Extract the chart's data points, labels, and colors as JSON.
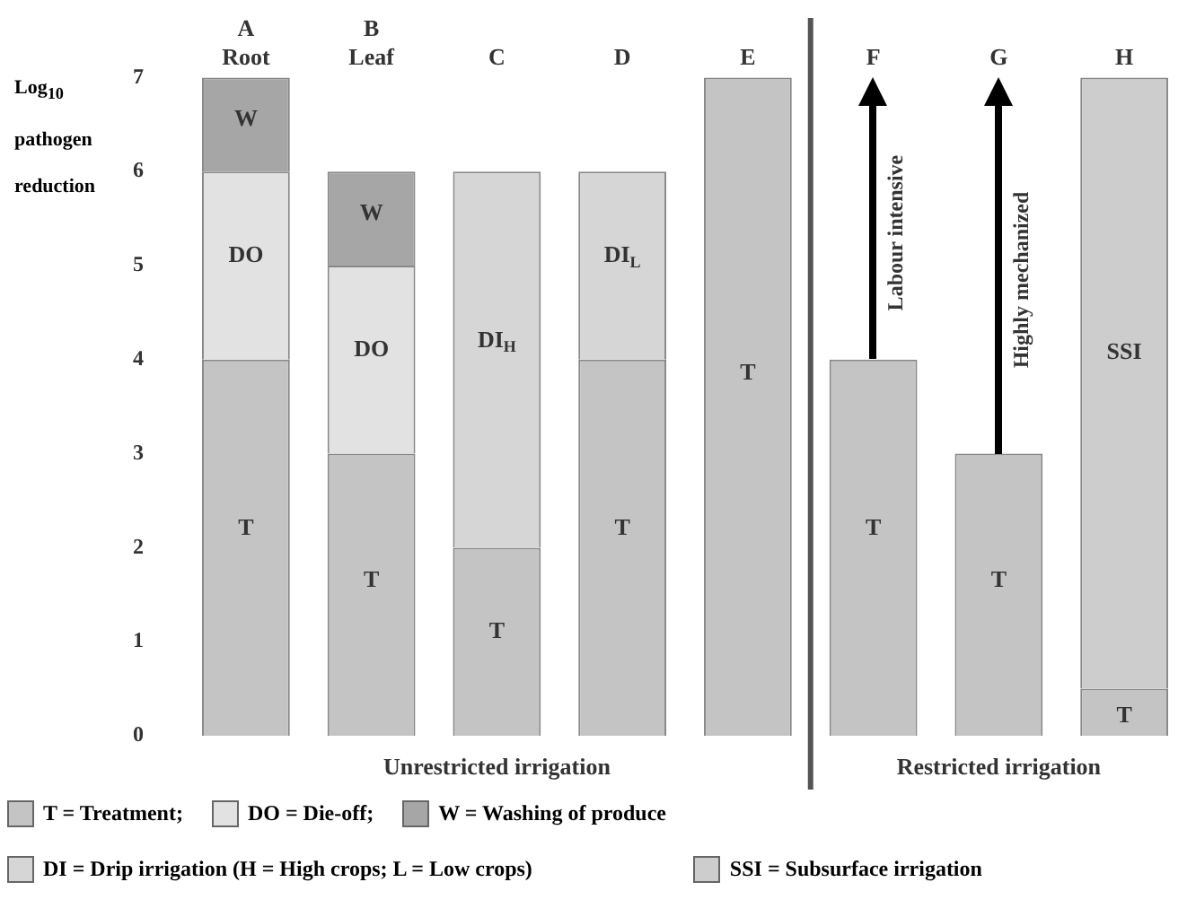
{
  "chart_data": {
    "type": "bar",
    "stacked": true,
    "ylabel": "Log$_{10}$ pathogen reduction",
    "categories": [
      "A\nRoot",
      "B\nLeaf",
      "C",
      "D",
      "E",
      "F",
      "G",
      "H"
    ],
    "series": [
      {
        "name": "T = Treatment;",
        "color": "#c4c4c4",
        "values": [
          4,
          3,
          2,
          4,
          7,
          4,
          3,
          0.5
        ],
        "value_labels": [
          "T",
          "T",
          "T",
          "T",
          "T",
          "T",
          "T",
          "T"
        ]
      },
      {
        "name": "DO = Die-off;",
        "color": "#e2e2e2",
        "values": [
          2,
          2,
          null,
          null,
          null,
          null,
          null,
          null
        ],
        "value_labels": [
          "DO",
          "DO",
          null,
          null,
          null,
          null,
          null,
          null
        ]
      },
      {
        "name": "W = Washing of produce",
        "color": "#a6a6a6",
        "values": [
          1,
          1,
          null,
          null,
          null,
          null,
          null,
          null
        ],
        "value_labels": [
          "W",
          "W",
          null,
          null,
          null,
          null,
          null,
          null
        ]
      },
      {
        "name": "DI = Drip irrigation (H = High crops; L = Low crops)",
        "color": "#d6d6d6",
        "values": [
          null,
          null,
          4,
          2,
          null,
          null,
          null,
          null
        ],
        "value_labels": [
          null,
          null,
          "DI$_{H}$",
          "DI$_{L}$",
          null,
          null,
          null,
          null
        ]
      },
      {
        "name": "SSI = Subsurface irrigation",
        "color": "#cdcdcd",
        "values": [
          null,
          null,
          null,
          null,
          null,
          null,
          null,
          6.5
        ],
        "value_labels": [
          null,
          null,
          null,
          null,
          null,
          null,
          null,
          "SSI"
        ]
      }
    ],
    "ylim": [
      0,
      7
    ],
    "yticks": [
      0,
      1,
      2,
      3,
      4,
      5,
      6,
      7
    ],
    "grid": false,
    "legend": "bottom",
    "annotations": [
      "Labour intensive",
      "Highly mechanized",
      "Unrestricted irrigation",
      "Restricted irrigation"
    ]
  }
}
